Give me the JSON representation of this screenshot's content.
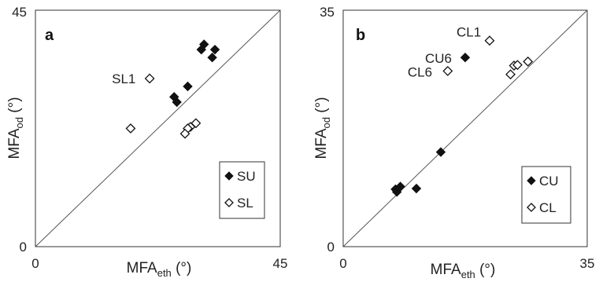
{
  "chart_data": [
    {
      "type": "scatter",
      "panel_label": "a",
      "xlabel": {
        "main": "MFA",
        "sub": "eth",
        "unit": " (°)"
      },
      "ylabel": {
        "main": "MFA",
        "sub": "od",
        "unit": " (°)"
      },
      "xlim": [
        0,
        45
      ],
      "ylim": [
        0,
        45
      ],
      "x_tick_labels": [
        "0",
        "45"
      ],
      "y_tick_labels": [
        "0",
        "45"
      ],
      "identity_line": true,
      "legend_position": "bottom-right",
      "series": [
        {
          "name": "SU",
          "marker": "filled-diamond",
          "x": [
            32.5,
            30.5,
            26,
            25.5,
            28,
            31,
            33
          ],
          "y": [
            36,
            37.5,
            27.5,
            28.5,
            30.5,
            38.5,
            37.5
          ]
        },
        {
          "name": "SL",
          "marker": "open-diamond",
          "x": [
            21,
            29.5,
            28.5,
            28,
            17.5,
            27.5
          ],
          "y": [
            32,
            23.5,
            22.8,
            22.5,
            22.5,
            21.5
          ]
        }
      ],
      "annotations": [
        {
          "text": "SL1",
          "x": 21,
          "y": 32
        }
      ]
    },
    {
      "type": "scatter",
      "panel_label": "b",
      "xlabel": {
        "main": "MFA",
        "sub": "eth",
        "unit": " (°)"
      },
      "ylabel": {
        "main": "MFA",
        "sub": "od",
        "unit": " (°)"
      },
      "xlim": [
        0,
        35
      ],
      "ylim": [
        0,
        35
      ],
      "x_tick_labels": [
        "0",
        "35"
      ],
      "y_tick_labels": [
        "0",
        "35"
      ],
      "identity_line": true,
      "legend_position": "bottom-right",
      "series": [
        {
          "name": "CU",
          "marker": "filled-diamond",
          "x": [
            7.5,
            8.2,
            7.7,
            10.5,
            14,
            17.5
          ],
          "y": [
            8.5,
            8.9,
            8.1,
            8.6,
            14,
            28
          ],
          "order_note": ""
        },
        {
          "name": "CL",
          "marker": "open-diamond",
          "x": [
            21,
            15,
            24,
            24.5,
            25,
            26.5
          ],
          "y": [
            30.5,
            26,
            25.5,
            26.8,
            26.9,
            27.4
          ]
        }
      ],
      "annotations": [
        {
          "text": "CL1",
          "x": 21,
          "y": 30.5
        },
        {
          "text": "CU6",
          "x": 17.5,
          "y": 28
        },
        {
          "text": "CL6",
          "x": 15,
          "y": 26
        }
      ]
    }
  ]
}
